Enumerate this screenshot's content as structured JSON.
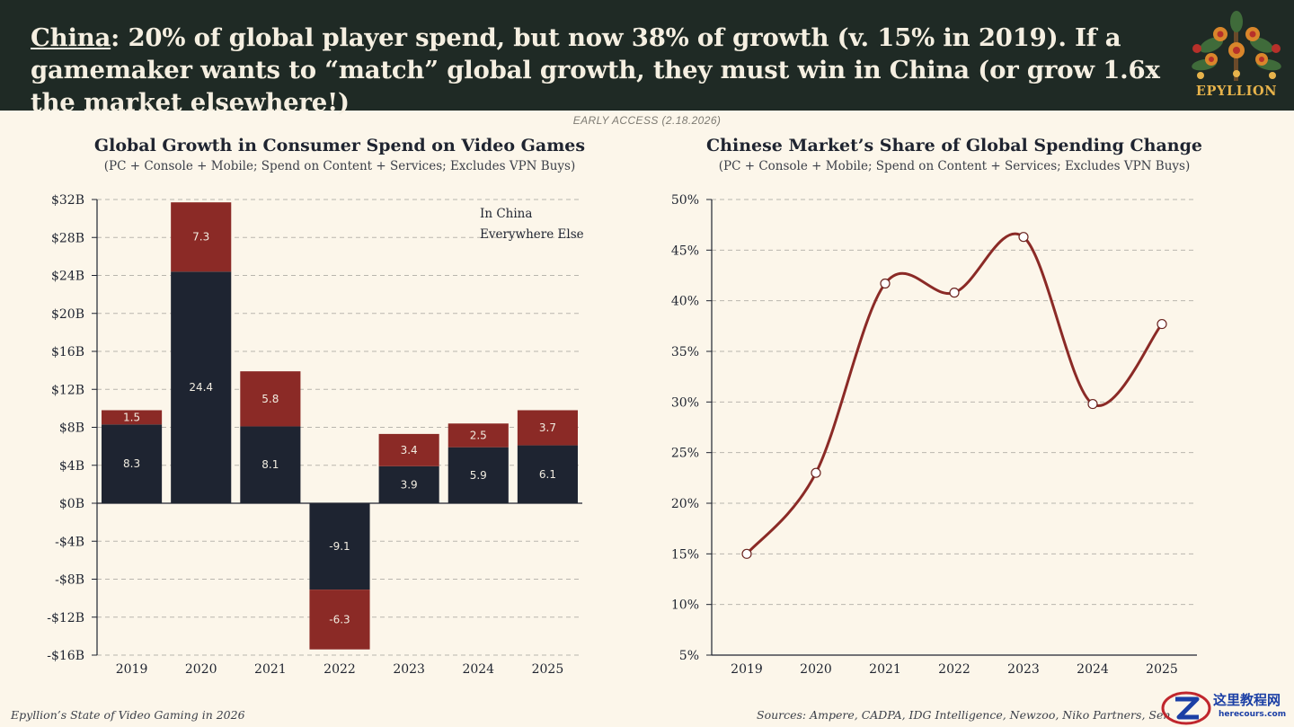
{
  "header": {
    "headline_key": "China",
    "headline_rest": ": 20% of global player spend, but now 38% of growth (v. 15% in 2019). If a gamemaker wants to “match” global growth, they must win in China (or grow 1.6x the market elsewhere!)",
    "logo_text": "EPYLLION",
    "logo_icon": "floral-tree-icon"
  },
  "early_access": "EARLY ACCESS (2.18.2026)",
  "colors": {
    "header_bg": "#1f2a25",
    "china": "#8b2a26",
    "elsewhere": "#1e2431",
    "line": "#8b2a26",
    "gold": "#e7b34b"
  },
  "chart_data": [
    {
      "type": "bar",
      "stacked": true,
      "title": "Global Growth in Consumer Spend on Video Games",
      "subtitle": "(PC + Console + Mobile; Spend on Content + Services; Excludes VPN Buys)",
      "categories": [
        "2019",
        "2020",
        "2021",
        "2022",
        "2023",
        "2024",
        "2025"
      ],
      "series": [
        {
          "name": "Everywhere Else",
          "values": [
            8.3,
            24.4,
            8.1,
            -9.1,
            3.9,
            5.9,
            6.1
          ],
          "labels": [
            "8.3",
            "24.4",
            "8.1",
            "-9.1",
            "3.9",
            "5.9",
            "6.1"
          ]
        },
        {
          "name": "In China",
          "values": [
            1.5,
            7.3,
            5.8,
            -6.3,
            3.4,
            2.5,
            3.7
          ],
          "labels": [
            "1.5",
            "7.3",
            "5.8",
            "-6.3",
            "3.4",
            "2.5",
            "3.7"
          ]
        }
      ],
      "ylim": [
        -16,
        32
      ],
      "yticks": [
        32,
        28,
        24,
        20,
        16,
        12,
        8,
        4,
        0,
        -4,
        -8,
        -12,
        -16
      ],
      "ytick_labels": [
        "$32B",
        "$28B",
        "$24B",
        "$20B",
        "$16B",
        "$12B",
        "$8B",
        "$4B",
        "$0B",
        "-$4B",
        "-$8B",
        "-$12B",
        "-$16B"
      ],
      "legend": {
        "items": [
          "In China",
          "Everywhere Else"
        ],
        "placement": "top-right"
      },
      "grid": true
    },
    {
      "type": "line",
      "title": "Chinese Market’s Share of Global Spending Change",
      "subtitle": "(PC + Console + Mobile; Spend on Content + Services; Excludes VPN Buys)",
      "categories": [
        "2019",
        "2020",
        "2021",
        "2022",
        "2023",
        "2024",
        "2025"
      ],
      "values": [
        15,
        23,
        41.7,
        40.8,
        46.3,
        29.8,
        37.7
      ],
      "ylim": [
        5,
        50
      ],
      "yticks": [
        50,
        45,
        40,
        35,
        30,
        25,
        20,
        15,
        10,
        5
      ],
      "ytick_labels": [
        "50%",
        "45%",
        "40%",
        "35%",
        "30%",
        "25%",
        "20%",
        "15%",
        "10%",
        "5%"
      ],
      "smooth": true,
      "grid": true
    }
  ],
  "footer": {
    "left": "Epyllion’s State of Video Gaming in 2026",
    "right": "Sources: Ampere, CADPA, IDG Intelligence, Newzoo, Niko Partners, Sensor T"
  },
  "watermark": {
    "cn": "这里教程网",
    "url": "herecours.com",
    "icon": "z-logo-icon"
  }
}
